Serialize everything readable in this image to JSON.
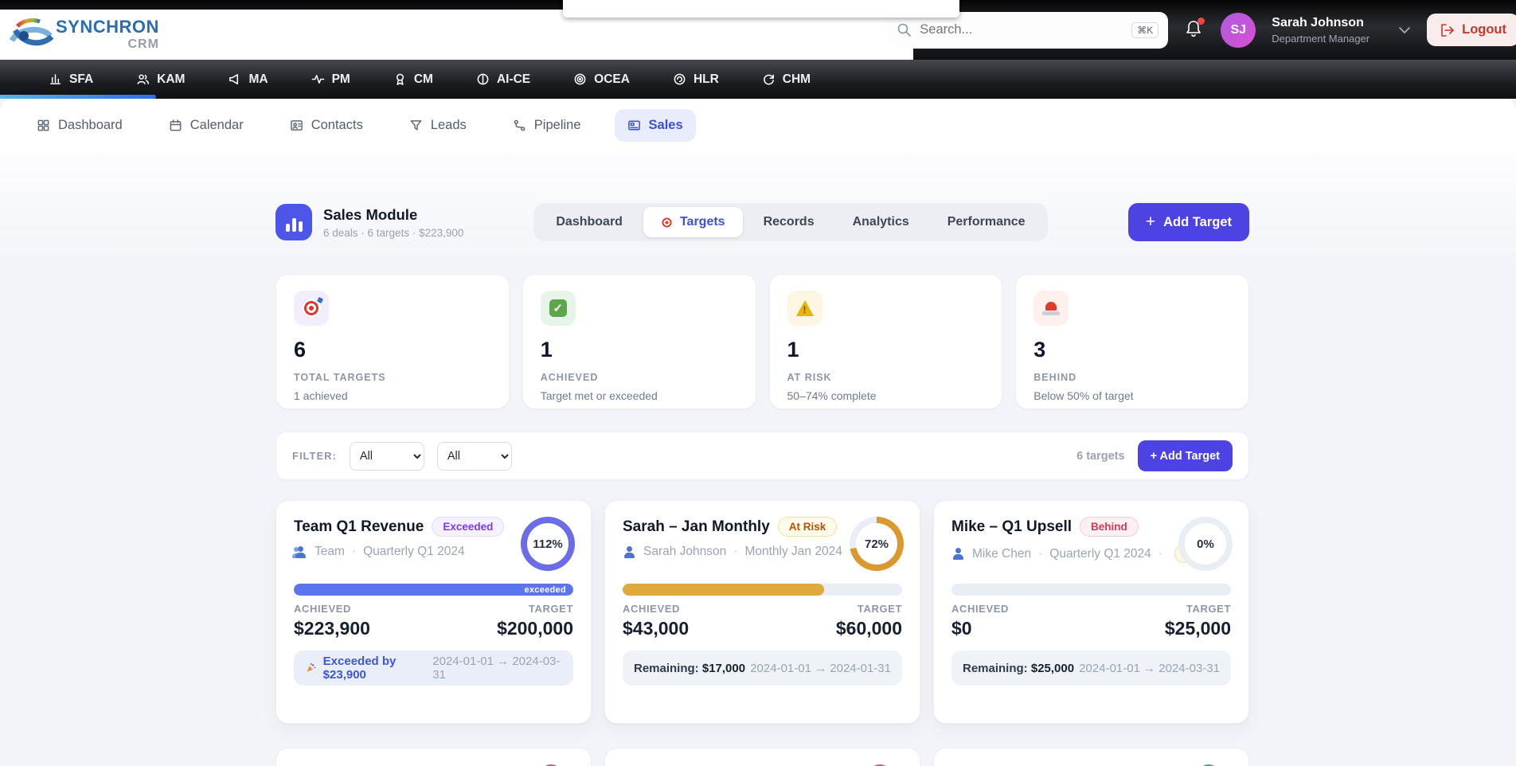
{
  "header": {
    "logo": {
      "name": "SYNCHRON",
      "product": "CRM"
    },
    "search": {
      "placeholder": "Search...",
      "shortcut": "⌘K"
    },
    "user": {
      "initials": "SJ",
      "name": "Sarah Johnson",
      "role": "Department Manager"
    },
    "logout_label": "Logout"
  },
  "module_nav": [
    "SFA",
    "KAM",
    "MA",
    "PM",
    "CM",
    "AI-CE",
    "OCEA",
    "HLR",
    "CHM"
  ],
  "sub_nav": [
    "Dashboard",
    "Calendar",
    "Contacts",
    "Leads",
    "Pipeline",
    "Sales"
  ],
  "sales_module": {
    "title": "Sales Module",
    "subtitle": "6 deals · 6 targets · $223,900",
    "tabs": [
      "Dashboard",
      "Targets",
      "Records",
      "Analytics",
      "Performance"
    ],
    "add_target_label": "Add Target",
    "add_target_short": "+ Add Target"
  },
  "stats": [
    {
      "value": "6",
      "label": "TOTAL TARGETS",
      "description": "1 achieved"
    },
    {
      "value": "1",
      "label": "ACHIEVED",
      "description": "Target met or exceeded"
    },
    {
      "value": "1",
      "label": "AT RISK",
      "description": "50–74% complete"
    },
    {
      "value": "3",
      "label": "BEHIND",
      "description": "Below 50% of target"
    }
  ],
  "filter": {
    "label": "FILTER:",
    "type_value": "All",
    "status_value": "All",
    "count_text": "6 targets"
  },
  "targets": [
    {
      "name": "Team Q1 Revenue",
      "status": "Exceeded",
      "owner": "Team",
      "period": "Quarterly Q1 2024",
      "percent": "112%",
      "progress_pct": 112,
      "bar_label": "exceeded",
      "achieved_label": "ACHIEVED",
      "target_label": "TARGET",
      "achieved": "$223,900",
      "target": "$200,000",
      "footer_note": "Exceeded by $23,900",
      "dates": "2024-01-01 → 2024-03-31"
    },
    {
      "name": "Sarah – Jan Monthly",
      "status": "At Risk",
      "owner": "Sarah Johnson",
      "period": "Monthly Jan 2024",
      "percent": "72%",
      "progress_pct": 72,
      "achieved_label": "ACHIEVED",
      "target_label": "TARGET",
      "achieved": "$43,000",
      "target": "$60,000",
      "remaining_label": "Remaining:",
      "remaining_value": "$17,000",
      "dates": "2024-01-01 → 2024-01-31"
    },
    {
      "name": "Mike – Q1 Upsell",
      "status": "Behind",
      "owner": "Mike Chen",
      "period": "Quarterly Q1 2024",
      "tag": "Upsell",
      "percent": "0%",
      "progress_pct": 0,
      "achieved_label": "ACHIEVED",
      "target_label": "TARGET",
      "achieved": "$0",
      "target": "$25,000",
      "remaining_label": "Remaining:",
      "remaining_value": "$25,000",
      "dates": "2024-01-01 → 2024-03-31"
    }
  ],
  "colors": {
    "accent": "#4d43e3",
    "bar_blue": "#5b74f0",
    "bar_amber": "#e0a93c",
    "ring_indigo": "#6b6ce8",
    "ring_amber": "#d9992f",
    "exceeded": "#7c3aed",
    "at_risk": "#b45309",
    "behind": "#d23b56"
  }
}
